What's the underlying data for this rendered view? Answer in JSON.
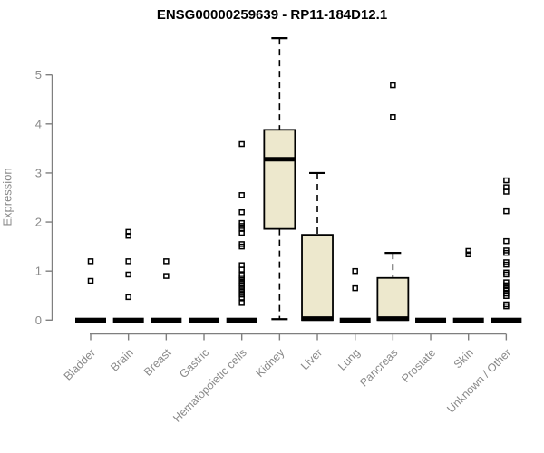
{
  "chart_data": {
    "type": "boxplot",
    "title": "ENSG00000259639 - RP11-184D12.1",
    "xlabel": "",
    "ylabel": "Expression",
    "ylim": [
      0,
      5.9
    ],
    "yticks": [
      0,
      1,
      2,
      3,
      4,
      5
    ],
    "grid": false,
    "legend": "none",
    "categories": [
      "Bladder",
      "Brain",
      "Breast",
      "Gastric",
      "Hematopoietic cells",
      "Kidney",
      "Liver",
      "Lung",
      "Pancreas",
      "Prostate",
      "Skin",
      "Unknown / Other"
    ],
    "boxes": [
      {
        "category": "Bladder",
        "q1": 0,
        "median": 0,
        "q3": 0,
        "whisker_low": 0,
        "whisker_high": 0,
        "outliers": [
          1.2,
          0.8
        ]
      },
      {
        "category": "Brain",
        "q1": 0,
        "median": 0,
        "q3": 0,
        "whisker_low": 0,
        "whisker_high": 0,
        "outliers": [
          1.8,
          1.72,
          1.2,
          0.93,
          0.47
        ]
      },
      {
        "category": "Breast",
        "q1": 0,
        "median": 0,
        "q3": 0,
        "whisker_low": 0,
        "whisker_high": 0,
        "outliers": [
          1.2,
          0.9
        ]
      },
      {
        "category": "Gastric",
        "q1": 0,
        "median": 0,
        "q3": 0,
        "whisker_low": 0,
        "whisker_high": 0,
        "outliers": []
      },
      {
        "category": "Hematopoietic cells",
        "q1": 0,
        "median": 0,
        "q3": 0,
        "whisker_low": 0,
        "whisker_high": 0,
        "outliers": [
          3.59,
          2.55,
          2.2,
          1.98,
          1.92,
          1.86,
          1.78,
          1.55,
          1.5,
          1.12,
          1.03,
          0.92,
          0.87,
          0.81,
          0.75,
          0.7,
          0.64,
          0.58,
          0.52,
          0.46,
          0.35
        ]
      },
      {
        "category": "Kidney",
        "q1": 1.86,
        "median": 3.28,
        "q3": 3.88,
        "whisker_low": 0.02,
        "whisker_high": 5.75,
        "outliers": []
      },
      {
        "category": "Liver",
        "q1": 0,
        "median": 0.03,
        "q3": 1.74,
        "whisker_low": 0,
        "whisker_high": 3.0,
        "outliers": []
      },
      {
        "category": "Lung",
        "q1": 0,
        "median": 0,
        "q3": 0,
        "whisker_low": 0,
        "whisker_high": 0,
        "outliers": [
          1.0,
          0.65
        ]
      },
      {
        "category": "Pancreas",
        "q1": 0,
        "median": 0.03,
        "q3": 0.86,
        "whisker_low": 0,
        "whisker_high": 1.37,
        "outliers": [
          4.79,
          4.14
        ]
      },
      {
        "category": "Prostate",
        "q1": 0,
        "median": 0,
        "q3": 0,
        "whisker_low": 0,
        "whisker_high": 0,
        "outliers": []
      },
      {
        "category": "Skin",
        "q1": 0,
        "median": 0,
        "q3": 0,
        "whisker_low": 0,
        "whisker_high": 0,
        "outliers": [
          1.41,
          1.34
        ]
      },
      {
        "category": "Unknown / Other",
        "q1": 0,
        "median": 0,
        "q3": 0,
        "whisker_low": 0,
        "whisker_high": 0,
        "outliers": [
          2.85,
          2.71,
          2.62,
          2.22,
          1.61,
          1.42,
          1.37,
          1.18,
          1.13,
          0.97,
          0.93,
          0.77,
          0.71,
          0.65,
          0.6,
          0.54,
          0.49,
          0.32,
          0.28
        ]
      }
    ],
    "colors": {
      "box_fill": "#ede8cd",
      "box_stroke": "#000000",
      "median": "#000000",
      "whisker": "#000000",
      "outlier_stroke": "#000000",
      "axis": "#7f7f7f",
      "tick_label": "#8a8a8a",
      "title": "#000000",
      "background": "#ffffff"
    }
  }
}
